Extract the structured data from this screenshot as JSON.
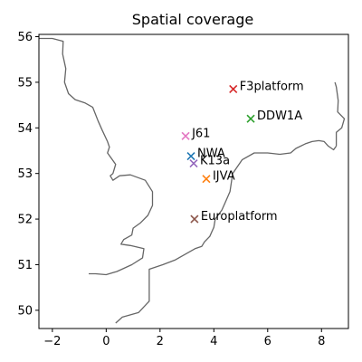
{
  "chart_data": {
    "type": "scatter",
    "title": "Spatial coverage",
    "xlabel": "",
    "ylabel": "",
    "xlim": [
      -2.5,
      9.0
    ],
    "ylim": [
      49.6,
      56.05
    ],
    "x_ticks": [
      -2,
      0,
      2,
      4,
      6,
      8
    ],
    "y_ticks": [
      50,
      51,
      52,
      53,
      54,
      55,
      56
    ],
    "grid": false,
    "marker": "x",
    "coastline_color": "#666666",
    "points": [
      {
        "label": "F3platform",
        "lon": 4.72,
        "lat": 54.85,
        "color": "#d62728"
      },
      {
        "label": "DDW1A",
        "lon": 5.37,
        "lat": 54.2,
        "color": "#2ca02c"
      },
      {
        "label": "J61",
        "lon": 2.95,
        "lat": 53.82,
        "color": "#e377c2"
      },
      {
        "label": "NWA",
        "lon": 3.15,
        "lat": 53.38,
        "color": "#1f77b4"
      },
      {
        "label": "K13a",
        "lon": 3.25,
        "lat": 53.22,
        "color": "#9467bd"
      },
      {
        "label": "IJVA",
        "lon": 3.72,
        "lat": 52.88,
        "color": "#ff7f0e"
      },
      {
        "label": "Europlatform",
        "lon": 3.28,
        "lat": 52.0,
        "color": "#8c564b"
      }
    ],
    "coastlines": [
      [
        [
          -2.5,
          55.96
        ],
        [
          -2.0,
          55.96
        ],
        [
          -1.6,
          55.9
        ],
        [
          -1.62,
          55.62
        ],
        [
          -1.5,
          55.3
        ],
        [
          -1.55,
          55.0
        ],
        [
          -1.4,
          54.75
        ],
        [
          -1.15,
          54.62
        ],
        [
          -0.8,
          54.55
        ],
        [
          -0.5,
          54.45
        ],
        [
          -0.3,
          54.15
        ],
        [
          -0.15,
          53.95
        ],
        [
          0.05,
          53.7
        ],
        [
          0.12,
          53.58
        ],
        [
          0.05,
          53.45
        ],
        [
          0.35,
          53.2
        ],
        [
          0.25,
          53.0
        ],
        [
          0.15,
          52.95
        ],
        [
          0.25,
          52.85
        ],
        [
          0.5,
          52.95
        ],
        [
          0.9,
          52.97
        ],
        [
          1.45,
          52.85
        ],
        [
          1.72,
          52.6
        ],
        [
          1.72,
          52.3
        ],
        [
          1.55,
          52.08
        ],
        [
          1.28,
          51.92
        ],
        [
          1.0,
          51.8
        ],
        [
          0.95,
          51.65
        ],
        [
          0.65,
          51.55
        ],
        [
          0.55,
          51.45
        ],
        [
          0.9,
          51.42
        ],
        [
          1.4,
          51.35
        ],
        [
          1.35,
          51.15
        ],
        [
          0.95,
          51.0
        ],
        [
          0.4,
          50.85
        ],
        [
          0.0,
          50.78
        ],
        [
          -0.4,
          50.8
        ],
        [
          -0.6,
          50.8
        ],
        [
          -0.65,
          50.8
        ]
      ],
      [
        [
          1.3,
          56.05
        ],
        [
          1.3,
          56.05
        ]
      ],
      [
        [
          0.35,
          49.72
        ],
        [
          0.6,
          49.85
        ],
        [
          1.2,
          49.95
        ],
        [
          1.6,
          50.2
        ],
        [
          1.6,
          50.9
        ],
        [
          2.1,
          51.0
        ],
        [
          2.55,
          51.1
        ],
        [
          3.3,
          51.35
        ],
        [
          3.55,
          51.4
        ],
        [
          3.65,
          51.5
        ],
        [
          3.85,
          51.62
        ],
        [
          4.0,
          51.82
        ],
        [
          4.05,
          52.0
        ],
        [
          4.3,
          52.2
        ],
        [
          4.45,
          52.4
        ],
        [
          4.6,
          52.6
        ],
        [
          4.65,
          52.8
        ],
        [
          4.7,
          53.0
        ],
        [
          5.05,
          53.3
        ],
        [
          5.5,
          53.45
        ],
        [
          6.0,
          53.45
        ],
        [
          6.45,
          53.42
        ],
        [
          6.85,
          53.45
        ],
        [
          7.05,
          53.55
        ],
        [
          7.4,
          53.65
        ],
        [
          7.65,
          53.7
        ],
        [
          7.9,
          53.72
        ],
        [
          8.1,
          53.7
        ],
        [
          8.25,
          53.6
        ],
        [
          8.45,
          53.52
        ],
        [
          8.55,
          53.6
        ]
      ],
      [
        [
          8.55,
          53.6
        ],
        [
          8.55,
          53.9
        ],
        [
          8.75,
          54.0
        ],
        [
          8.85,
          54.2
        ],
        [
          8.6,
          54.35
        ],
        [
          8.62,
          54.6
        ],
        [
          8.55,
          54.9
        ],
        [
          8.5,
          55.0
        ]
      ]
    ]
  }
}
